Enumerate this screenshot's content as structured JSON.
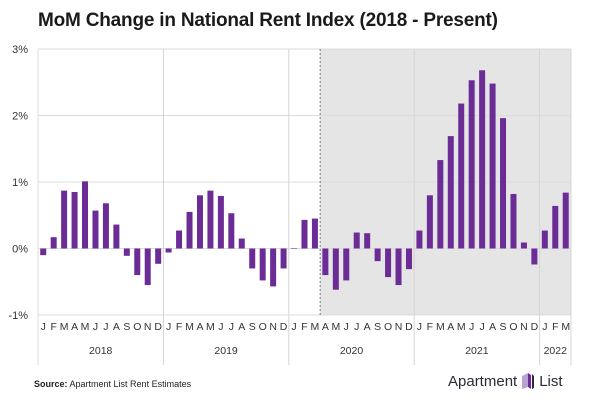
{
  "chart_data": {
    "type": "bar",
    "title": "MoM Change in National Rent Index (2018 - Present)",
    "xlabel": "",
    "ylabel": "",
    "ylim": [
      -1,
      3
    ],
    "yticks": [
      "-1%",
      "0%",
      "1%",
      "2%",
      "3%"
    ],
    "ytick_values": [
      -1,
      0,
      1,
      2,
      3
    ],
    "grid": true,
    "bar_color": "#6b2c96",
    "shade_color": "#e5e5e5",
    "shaded_from": "2020-04",
    "years": [
      {
        "label": "2018",
        "months": [
          "J",
          "F",
          "M",
          "A",
          "M",
          "J",
          "J",
          "A",
          "S",
          "O",
          "N",
          "D"
        ],
        "values": [
          -0.1,
          0.17,
          0.87,
          0.85,
          1.01,
          0.57,
          0.68,
          0.36,
          -0.11,
          -0.4,
          -0.55,
          -0.23
        ]
      },
      {
        "label": "2019",
        "months": [
          "J",
          "F",
          "M",
          "A",
          "M",
          "J",
          "J",
          "A",
          "S",
          "O",
          "N",
          "D"
        ],
        "values": [
          -0.06,
          0.27,
          0.55,
          0.8,
          0.87,
          0.79,
          0.53,
          0.15,
          -0.3,
          -0.48,
          -0.57,
          -0.3
        ]
      },
      {
        "label": "2020",
        "months": [
          "J",
          "F",
          "M",
          "A",
          "M",
          "J",
          "J",
          "A",
          "S",
          "O",
          "N",
          "D"
        ],
        "values": [
          0.0,
          0.43,
          0.45,
          -0.4,
          -0.62,
          -0.48,
          0.24,
          0.23,
          -0.19,
          -0.43,
          -0.55,
          -0.31
        ]
      },
      {
        "label": "2021",
        "months": [
          "J",
          "F",
          "M",
          "A",
          "M",
          "J",
          "J",
          "A",
          "S",
          "O",
          "N",
          "D"
        ],
        "values": [
          0.27,
          0.8,
          1.33,
          1.69,
          2.18,
          2.53,
          2.68,
          2.48,
          1.96,
          0.82,
          0.09,
          -0.24
        ]
      },
      {
        "label": "2022",
        "months": [
          "J",
          "F",
          "M"
        ],
        "values": [
          0.27,
          0.64,
          0.84
        ]
      }
    ]
  },
  "footer": {
    "source_label": "Source:",
    "source_text": "Apartment List Rent Estimates",
    "logo_left": "Apartment",
    "logo_right": "List"
  }
}
